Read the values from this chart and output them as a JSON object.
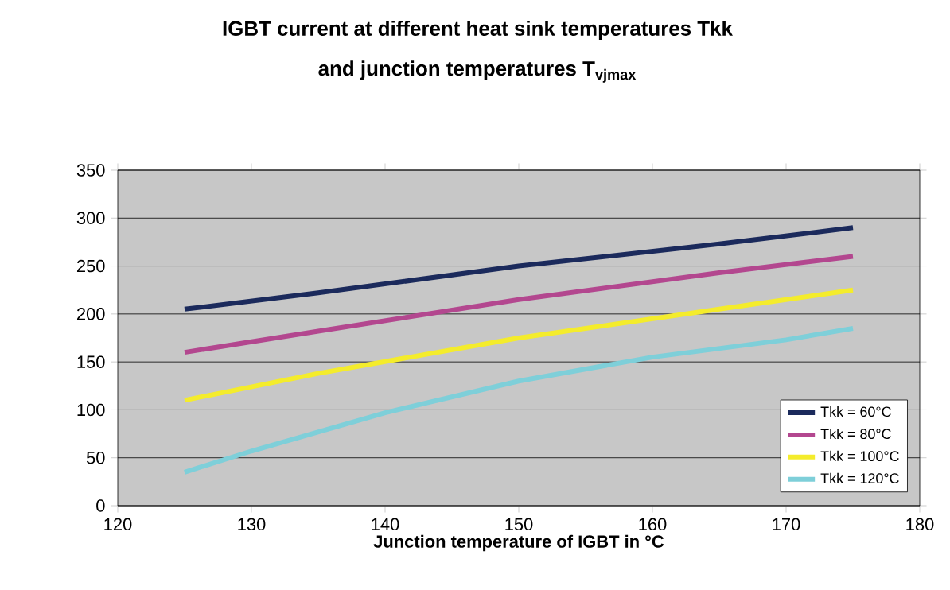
{
  "chart_data": {
    "type": "line",
    "title": "IGBT current at different heat sink temperatures  Tkk",
    "subtitle": "and junction temperatures T$_{vjmax}$",
    "xlabel": "Junction temperature of IGBT in °C",
    "xlim": [
      120,
      180
    ],
    "xticks": [
      120,
      130,
      140,
      150,
      160,
      170,
      180
    ],
    "ylim": [
      0,
      350
    ],
    "yticks": [
      0,
      50,
      100,
      150,
      200,
      250,
      300,
      350
    ],
    "grid": "y",
    "legend": "bottom right",
    "marker": "none",
    "line_style": "solid",
    "series": [
      {
        "name": "Tkk = 60°C",
        "color": "#1b2a5c",
        "x": [
          125,
          135,
          150,
          165,
          175
        ],
        "values": [
          205,
          222,
          250,
          273,
          290
        ]
      },
      {
        "name": "Tkk = 80°C",
        "color": "#b3478f",
        "x": [
          125,
          135,
          150,
          165,
          175
        ],
        "values": [
          160,
          182,
          215,
          243,
          260
        ]
      },
      {
        "name": "Tkk = 100°C",
        "color": "#f4ec2c",
        "x": [
          125,
          135,
          150,
          165,
          175
        ],
        "values": [
          110,
          138,
          175,
          205,
          225
        ]
      },
      {
        "name": "Tkk = 120°C",
        "color": "#7ecfd9",
        "x": [
          125,
          130,
          140,
          150,
          160,
          170,
          175
        ],
        "values": [
          35,
          57,
          97,
          130,
          155,
          173,
          185
        ]
      }
    ]
  }
}
